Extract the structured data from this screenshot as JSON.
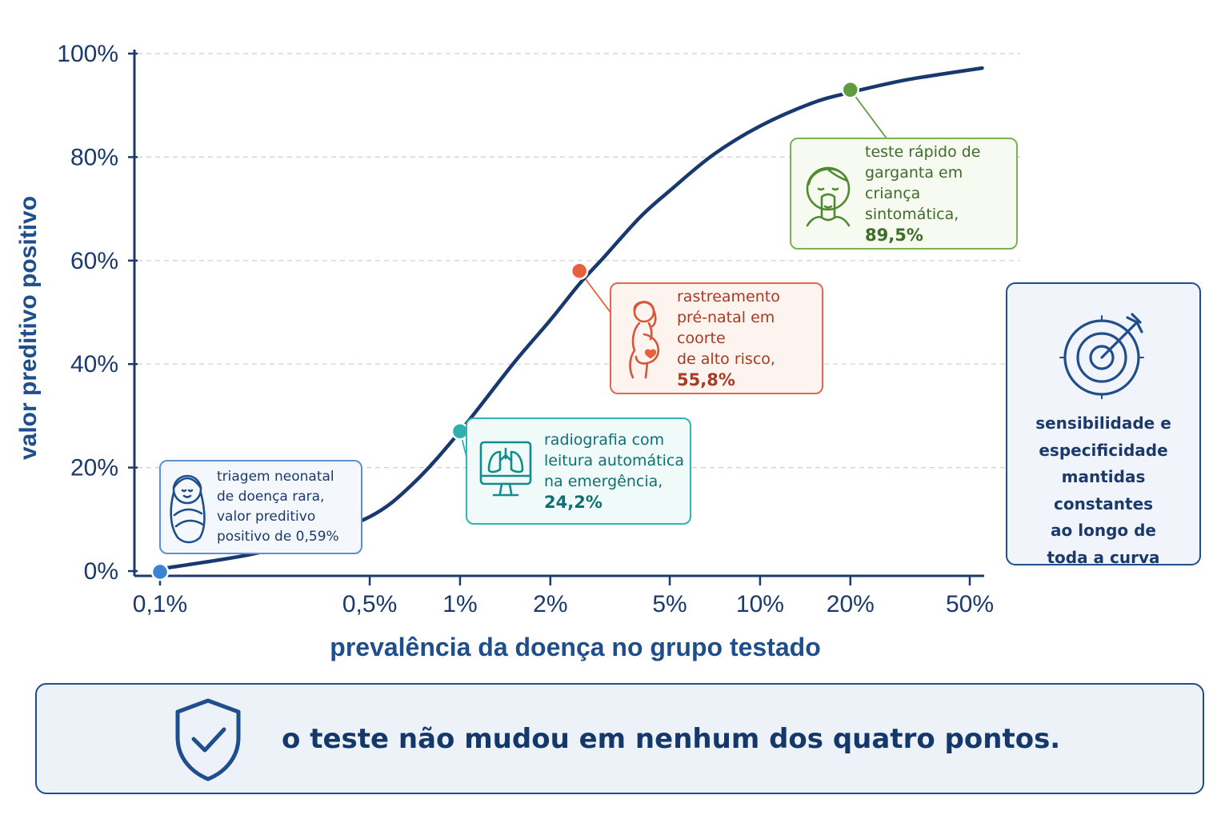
{
  "chart_data": {
    "type": "line",
    "title": "",
    "xlabel": "prevalência da doença no grupo testado",
    "ylabel": "valor preditivo positivo",
    "x_scale": "log",
    "x_ticks": [
      0.1,
      0.5,
      1,
      2,
      5,
      10,
      20,
      50
    ],
    "x_tick_labels": [
      "0,1%",
      "0,5%",
      "1%",
      "2%",
      "5%",
      "10%",
      "20%",
      "50%"
    ],
    "y_ticks": [
      0,
      20,
      40,
      60,
      80,
      100
    ],
    "y_tick_labels": [
      "0%",
      "20%",
      "40%",
      "60%",
      "80%",
      "100%"
    ],
    "xlim": [
      0.1,
      50
    ],
    "ylim": [
      0,
      100
    ],
    "grid": "horizontal dashed",
    "curve": {
      "x": [
        0.1,
        0.2,
        0.3,
        0.5,
        0.7,
        1,
        1.5,
        2,
        2.5,
        3,
        4,
        5,
        7,
        10,
        15,
        20,
        30,
        40,
        55
      ],
      "y": [
        0.4,
        3.2,
        6,
        10.5,
        17,
        27,
        40,
        48.5,
        55.5,
        60.5,
        68.5,
        73.5,
        80.5,
        86,
        90.5,
        92.5,
        94.8,
        96,
        97.2
      ],
      "color": "#17396e"
    },
    "points": [
      {
        "x": 0.1,
        "y": 0.59,
        "color": "#3a82d2"
      },
      {
        "x": 1,
        "y": 24.2,
        "color": "#2fb0b0"
      },
      {
        "x": 2.5,
        "y": 55.8,
        "color": "#e8613f"
      },
      {
        "x": 20,
        "y": 89.5,
        "color": "#5f9c3f"
      }
    ]
  },
  "callouts": {
    "neonatal": {
      "lines": [
        "triagem neonatal",
        "de doença rara,",
        "valor preditivo",
        "positivo de 0,59%"
      ],
      "icon": "baby-icon"
    },
    "radiografia": {
      "lines": [
        "radiografia com",
        "leitura automática",
        "na emergência,"
      ],
      "value": "24,2%",
      "icon": "lung-monitor-icon"
    },
    "prenatal": {
      "lines": [
        "rastreamento",
        "pré-natal em coorte",
        "de alto risco,"
      ],
      "value": "55,8%",
      "icon": "pregnant-woman-icon"
    },
    "garganta": {
      "lines": [
        "teste rápido de",
        "garganta em criança",
        "sintomática,"
      ],
      "value": "89,5%",
      "icon": "child-throat-icon"
    }
  },
  "side_note": {
    "lines": [
      "sensibilidade e",
      "especificidade",
      "mantidas constantes",
      "ao longo de",
      "toda a curva"
    ],
    "icon": "target-icon"
  },
  "banner": {
    "text": "o teste não mudou em nenhum dos quatro pontos.",
    "icon": "shield-check-icon"
  },
  "colors": {
    "axis": "#1b3a6b",
    "grid": "#c9cfd8",
    "title": "#1f4e8c"
  }
}
